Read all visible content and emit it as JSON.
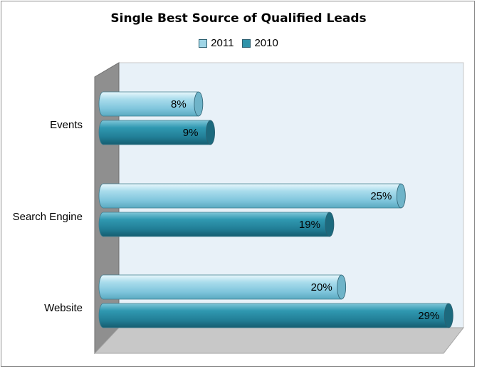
{
  "chart_data": {
    "type": "bar",
    "orientation": "horizontal",
    "style": "3d-cylinder",
    "title": "Single Best Source of Qualified Leads",
    "categories": [
      "Events",
      "Search Engine",
      "Website"
    ],
    "series": [
      {
        "name": "2011",
        "values": [
          8,
          25,
          20
        ],
        "labels": [
          "8%",
          "25%",
          "20%"
        ],
        "color": "#9fd5e6"
      },
      {
        "name": "2010",
        "values": [
          9,
          19,
          29
        ],
        "labels": [
          "9%",
          "19%",
          "29%"
        ],
        "color": "#2f93aa"
      }
    ],
    "xlim": [
      0,
      30
    ],
    "legend_position": "top",
    "colors": {
      "plot_back_wall": "#e8f1f8",
      "side_wall": "#8f8f8f",
      "floor": "#c8c8c8"
    }
  }
}
